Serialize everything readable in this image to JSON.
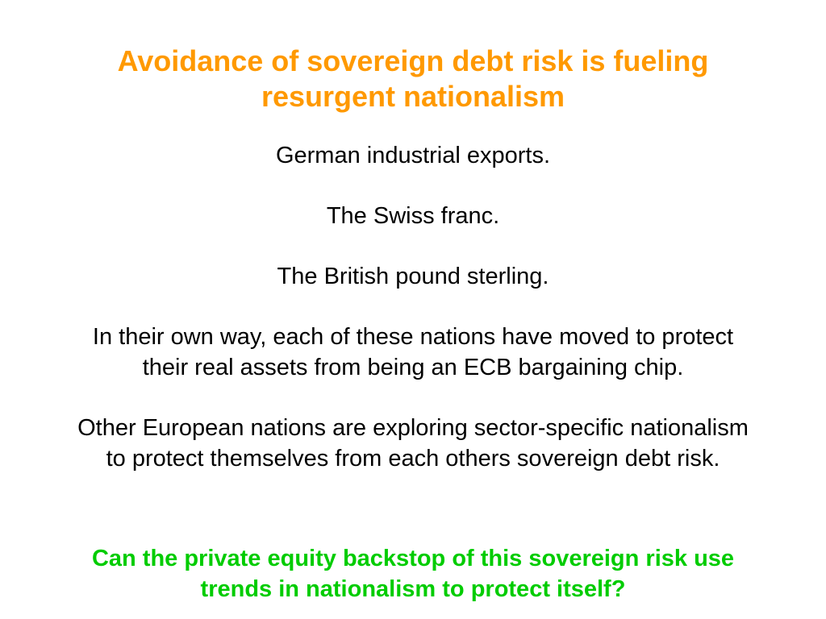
{
  "slide": {
    "title_lines": [
      "Avoidance of sovereign debt risk is fueling",
      "resurgent nationalism"
    ],
    "paragraphs": [
      {
        "lines": [
          "German industrial exports."
        ]
      },
      {
        "lines": [
          "The Swiss franc."
        ]
      },
      {
        "lines": [
          "The British pound sterling."
        ]
      },
      {
        "lines": [
          "In their own way, each of these nations have moved to protect",
          "their real assets from being an ECB bargaining chip."
        ]
      },
      {
        "lines": [
          "Other European nations are exploring sector-specific nationalism",
          "to protect themselves from each others sovereign debt risk."
        ]
      }
    ],
    "question_lines": [
      "Can the private equity backstop of this sovereign risk use",
      "trends in nationalism to protect itself?"
    ],
    "colors": {
      "title": "#ff9900",
      "body": "#000000",
      "question": "#00cc00"
    }
  }
}
